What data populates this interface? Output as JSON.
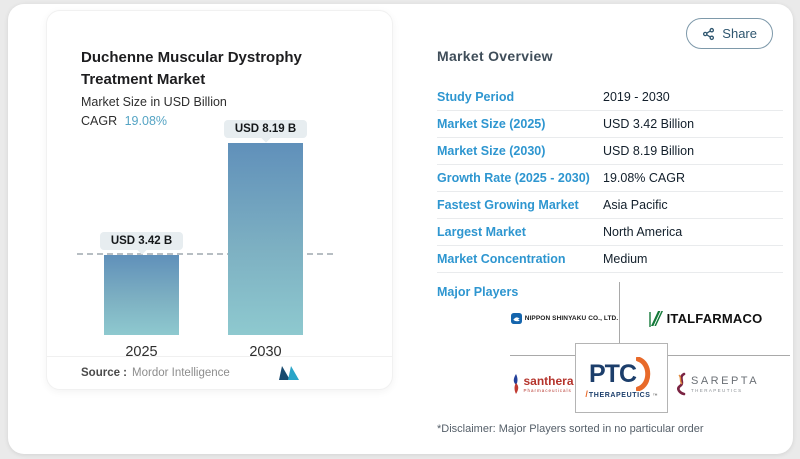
{
  "share": {
    "label": "Share"
  },
  "chart_panel": {
    "title_line1": "Duchenne Muscular Dystrophy",
    "title_line2": "Treatment Market",
    "subtitle": "Market Size in USD Billion",
    "cagr_label": "CAGR",
    "cagr_value": "19.08%",
    "source_label": "Source :",
    "source_value": "Mordor Intelligence"
  },
  "chart_data": {
    "type": "bar",
    "title": "Duchenne Muscular Dystrophy Treatment Market",
    "ylabel": "Market Size in USD Billion",
    "categories": [
      "2025",
      "2030"
    ],
    "values": [
      3.42,
      8.19
    ],
    "value_labels": [
      "USD 3.42 B",
      "USD 8.19 B"
    ],
    "ylim": [
      0,
      8.19
    ],
    "grid": false,
    "reference_line": {
      "value": 3.42,
      "style": "dashed"
    },
    "bar_gradient": [
      "#6090ba",
      "#8ec9cf"
    ]
  },
  "overview": {
    "heading": "Market Overview",
    "rows": [
      {
        "label": "Study Period",
        "value": "2019 - 2030"
      },
      {
        "label": "Market Size (2025)",
        "value": "USD 3.42 Billion"
      },
      {
        "label": "Market Size (2030)",
        "value": "USD 8.19 Billion"
      },
      {
        "label": "Growth Rate (2025 - 2030)",
        "value": "19.08% CAGR"
      },
      {
        "label": "Fastest Growing Market",
        "value": "Asia Pacific"
      },
      {
        "label": "Largest Market",
        "value": "North America"
      },
      {
        "label": "Market Concentration",
        "value": "Medium"
      }
    ],
    "major_players_label": "Major Players",
    "players": [
      {
        "name": "NIPPON SHINYAKU CO., LTD."
      },
      {
        "name": "ITALFARMACO"
      },
      {
        "name": "santhera",
        "sub": "Pharmaceuticals"
      },
      {
        "name": "PTC",
        "sub": "THERAPEUTICS",
        "tm": "™",
        "slash": "/"
      },
      {
        "name": "SAREPTA",
        "sub": "THERAPEUTICS"
      }
    ],
    "disclaimer": "*Disclaimer: Major Players sorted in no particular order"
  },
  "colors": {
    "accent_blue": "#2e96d0",
    "cagr_teal": "#55a4c4",
    "bar_top": "#6090ba",
    "bar_bottom": "#8ec9cf",
    "pill_bg": "#e7edf0",
    "page_bg": "#eaeaea"
  }
}
